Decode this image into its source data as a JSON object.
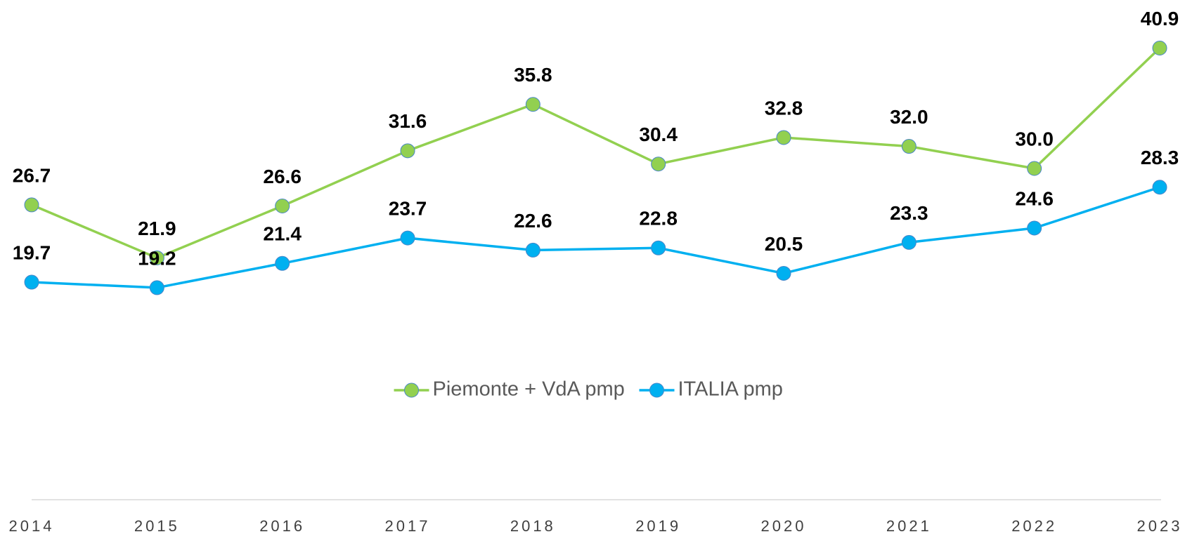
{
  "chart_data": {
    "type": "line",
    "categories": [
      "2014",
      "2015",
      "2016",
      "2017",
      "2018",
      "2019",
      "2020",
      "2021",
      "2022",
      "2023"
    ],
    "series": [
      {
        "name": "Piemonte + VdA pmp",
        "color": "#92d050",
        "values": [
          26.7,
          21.9,
          26.6,
          31.6,
          35.8,
          30.4,
          32.8,
          32.0,
          30.0,
          40.9
        ],
        "value_labels": [
          "26.7",
          "21.9",
          "26.6",
          "31.6",
          "35.8",
          "30.4",
          "32.8",
          "32.0",
          "30.0",
          "40.9"
        ]
      },
      {
        "name": "ITALIA pmp",
        "color": "#00b0f0",
        "values": [
          19.7,
          19.2,
          21.4,
          23.7,
          22.6,
          22.8,
          20.5,
          23.3,
          24.6,
          28.3
        ],
        "value_labels": [
          "19.7",
          "19.2",
          "21.4",
          "23.7",
          "22.6",
          "22.8",
          "20.5",
          "23.3",
          "24.6",
          "28.3"
        ]
      }
    ],
    "ylim": [
      0,
      45
    ],
    "legend": "bottom"
  }
}
